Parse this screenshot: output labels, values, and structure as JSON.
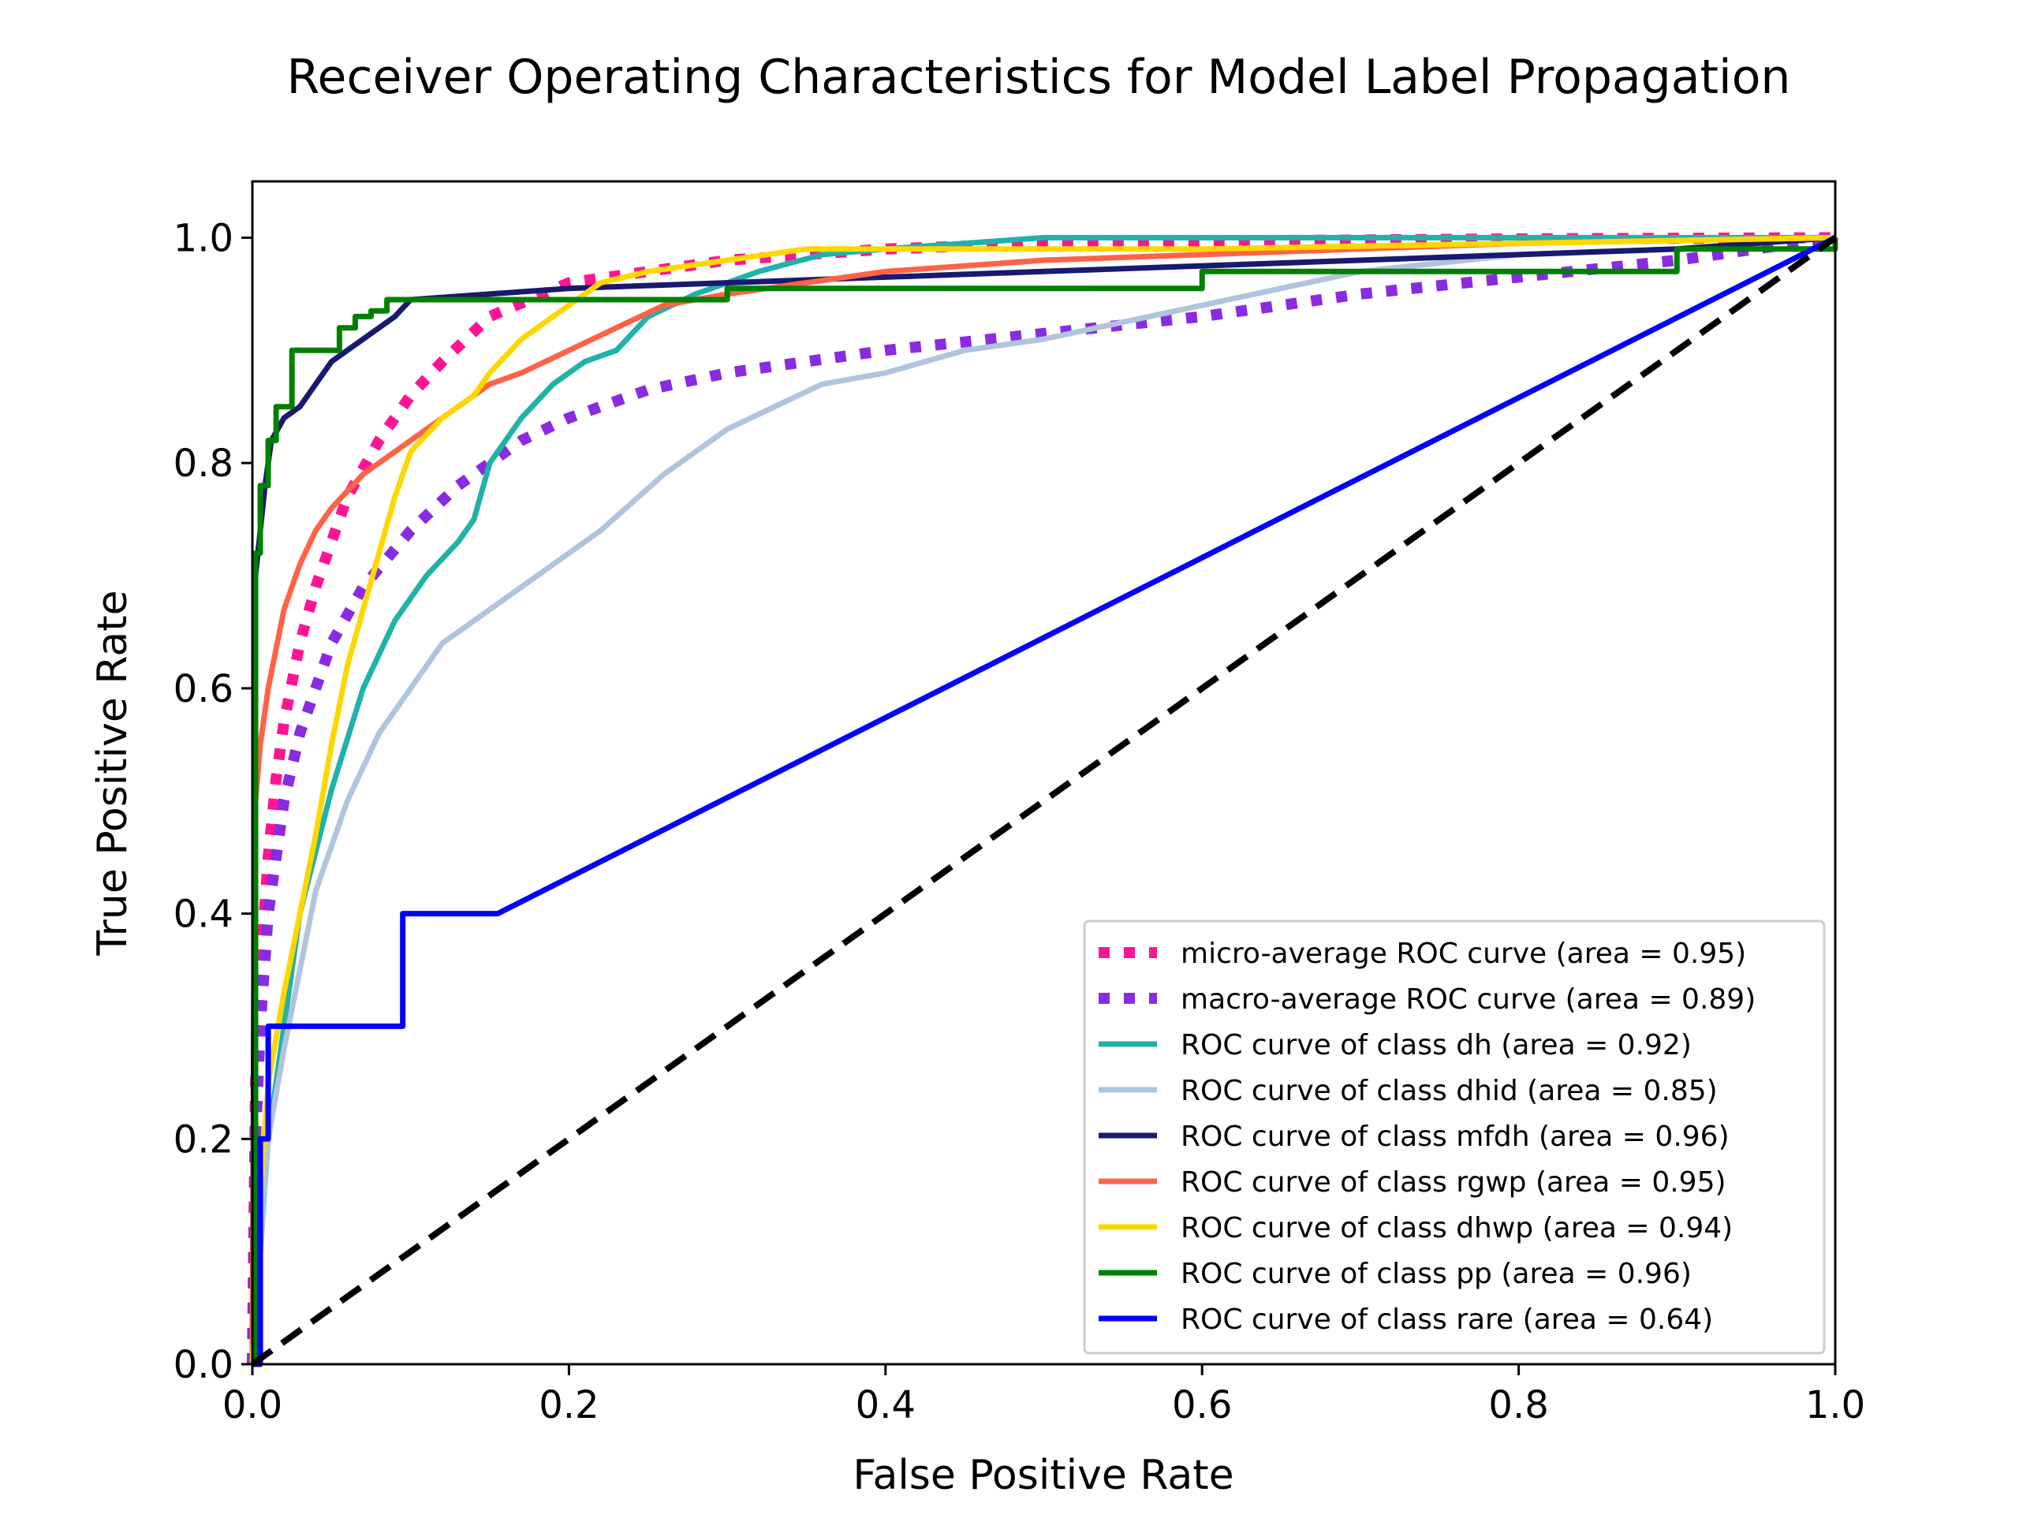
{
  "chart_data": {
    "type": "line",
    "title": "Receiver Operating Characteristics for Model Label Propagation",
    "xlabel": "False Positive Rate",
    "ylabel": "True Positive Rate",
    "xlim": [
      0.0,
      1.0
    ],
    "ylim": [
      0.0,
      1.05
    ],
    "xticks": [
      "0.0",
      "0.2",
      "0.4",
      "0.6",
      "0.8",
      "1.0"
    ],
    "yticks": [
      "0.0",
      "0.2",
      "0.4",
      "0.6",
      "0.8",
      "1.0"
    ],
    "grid": false,
    "legend_position": "lower right",
    "series": [
      {
        "name": "micro-average ROC curve (area = 0.95)",
        "color": "#ff1493",
        "style": "dotted-thick",
        "x": [
          0,
          0.002,
          0.005,
          0.01,
          0.015,
          0.02,
          0.03,
          0.04,
          0.05,
          0.06,
          0.08,
          0.1,
          0.12,
          0.15,
          0.2,
          0.25,
          0.3,
          0.35,
          0.4,
          0.5,
          0.6,
          0.8,
          1.0
        ],
        "y": [
          0,
          0.25,
          0.35,
          0.45,
          0.52,
          0.57,
          0.64,
          0.69,
          0.73,
          0.77,
          0.82,
          0.86,
          0.89,
          0.93,
          0.96,
          0.97,
          0.98,
          0.985,
          0.99,
          0.995,
          0.997,
          0.999,
          1.0
        ]
      },
      {
        "name": "macro-average ROC curve (area = 0.89)",
        "color": "#8a2be2",
        "style": "dotted-thick",
        "x": [
          0,
          0.002,
          0.005,
          0.01,
          0.02,
          0.03,
          0.05,
          0.07,
          0.1,
          0.13,
          0.17,
          0.2,
          0.25,
          0.3,
          0.35,
          0.4,
          0.5,
          0.6,
          0.7,
          0.8,
          0.9,
          1.0
        ],
        "y": [
          0,
          0.2,
          0.3,
          0.4,
          0.5,
          0.56,
          0.64,
          0.69,
          0.74,
          0.78,
          0.82,
          0.84,
          0.865,
          0.88,
          0.89,
          0.9,
          0.915,
          0.93,
          0.95,
          0.965,
          0.98,
          1.0
        ]
      },
      {
        "name": "ROC curve of class dh (area = 0.92)",
        "color": "#20b2aa",
        "style": "solid",
        "x": [
          0,
          0.005,
          0.01,
          0.02,
          0.03,
          0.05,
          0.07,
          0.09,
          0.11,
          0.13,
          0.14,
          0.15,
          0.17,
          0.19,
          0.21,
          0.23,
          0.25,
          0.28,
          0.32,
          0.36,
          0.4,
          0.45,
          0.5,
          0.6,
          0.8,
          1.0
        ],
        "y": [
          0,
          0.1,
          0.2,
          0.3,
          0.4,
          0.51,
          0.6,
          0.66,
          0.7,
          0.73,
          0.75,
          0.8,
          0.84,
          0.87,
          0.89,
          0.9,
          0.93,
          0.95,
          0.97,
          0.985,
          0.99,
          0.995,
          1.0,
          1.0,
          1.0,
          1.0
        ]
      },
      {
        "name": "ROC curve of class dhid (area = 0.85)",
        "color": "#b0c4de",
        "style": "solid",
        "x": [
          0,
          0.005,
          0.01,
          0.02,
          0.03,
          0.04,
          0.06,
          0.08,
          0.1,
          0.12,
          0.15,
          0.18,
          0.22,
          0.26,
          0.3,
          0.33,
          0.36,
          0.4,
          0.45,
          0.5,
          0.55,
          0.6,
          0.65,
          0.7,
          0.8,
          0.9,
          1.0
        ],
        "y": [
          0,
          0.1,
          0.2,
          0.28,
          0.35,
          0.42,
          0.5,
          0.56,
          0.6,
          0.64,
          0.67,
          0.7,
          0.74,
          0.79,
          0.83,
          0.85,
          0.87,
          0.88,
          0.9,
          0.91,
          0.925,
          0.94,
          0.955,
          0.97,
          0.985,
          0.99,
          1.0
        ]
      },
      {
        "name": "ROC curve of class mfdh (area = 0.96)",
        "color": "#191970",
        "style": "solid",
        "x": [
          0,
          0.002,
          0.005,
          0.008,
          0.012,
          0.016,
          0.02,
          0.03,
          0.04,
          0.05,
          0.06,
          0.07,
          0.08,
          0.09,
          0.1,
          0.2,
          0.3,
          0.5,
          0.7,
          0.9,
          1.0
        ],
        "y": [
          0,
          0.7,
          0.74,
          0.78,
          0.82,
          0.83,
          0.84,
          0.85,
          0.87,
          0.89,
          0.9,
          0.91,
          0.92,
          0.93,
          0.945,
          0.955,
          0.96,
          0.97,
          0.98,
          0.99,
          1.0
        ]
      },
      {
        "name": "ROC curve of class rgwp (area = 0.95)",
        "color": "#ff6347",
        "style": "solid",
        "x": [
          0,
          0.002,
          0.005,
          0.01,
          0.02,
          0.03,
          0.04,
          0.05,
          0.07,
          0.09,
          0.11,
          0.13,
          0.15,
          0.17,
          0.2,
          0.23,
          0.26,
          0.3,
          0.35,
          0.4,
          0.5,
          0.6,
          0.8,
          1.0
        ],
        "y": [
          0,
          0.5,
          0.55,
          0.6,
          0.67,
          0.71,
          0.74,
          0.76,
          0.79,
          0.81,
          0.83,
          0.85,
          0.87,
          0.88,
          0.9,
          0.92,
          0.94,
          0.95,
          0.96,
          0.97,
          0.98,
          0.985,
          0.995,
          1.0
        ]
      },
      {
        "name": "ROC curve of class dhwp (area = 0.94)",
        "color": "#ffd700",
        "style": "solid",
        "x": [
          0,
          0.005,
          0.01,
          0.02,
          0.03,
          0.04,
          0.05,
          0.06,
          0.07,
          0.08,
          0.09,
          0.1,
          0.12,
          0.14,
          0.15,
          0.17,
          0.2,
          0.22,
          0.25,
          0.3,
          0.35,
          0.4,
          0.5,
          0.6,
          0.8,
          1.0
        ],
        "y": [
          0,
          0.15,
          0.25,
          0.33,
          0.4,
          0.47,
          0.55,
          0.62,
          0.67,
          0.72,
          0.77,
          0.81,
          0.84,
          0.86,
          0.88,
          0.91,
          0.94,
          0.96,
          0.97,
          0.98,
          0.99,
          0.99,
          0.99,
          0.99,
          0.995,
          1.0
        ]
      },
      {
        "name": "ROC curve of class pp (area = 0.96)",
        "color": "#008000",
        "style": "solid",
        "step": true,
        "x": [
          0,
          0.002,
          0.005,
          0.01,
          0.015,
          0.025,
          0.045,
          0.055,
          0.065,
          0.075,
          0.085,
          0.1,
          0.3,
          0.6,
          0.9,
          1.0
        ],
        "y": [
          0,
          0.72,
          0.78,
          0.82,
          0.85,
          0.9,
          0.9,
          0.92,
          0.93,
          0.935,
          0.945,
          0.945,
          0.955,
          0.97,
          0.99,
          1.0
        ]
      },
      {
        "name": "ROC curve of class rare (area = 0.64)",
        "color": "#0000ff",
        "style": "solid",
        "x": [
          0,
          0.005,
          0.005,
          0.01,
          0.01,
          0.095,
          0.095,
          0.155,
          1.0
        ],
        "y": [
          0,
          0.0,
          0.2,
          0.2,
          0.3,
          0.3,
          0.4,
          0.4,
          1.0
        ]
      }
    ],
    "reference_line": {
      "x": [
        0,
        1
      ],
      "y": [
        0,
        1
      ],
      "color": "#000000",
      "style": "dashed"
    }
  }
}
